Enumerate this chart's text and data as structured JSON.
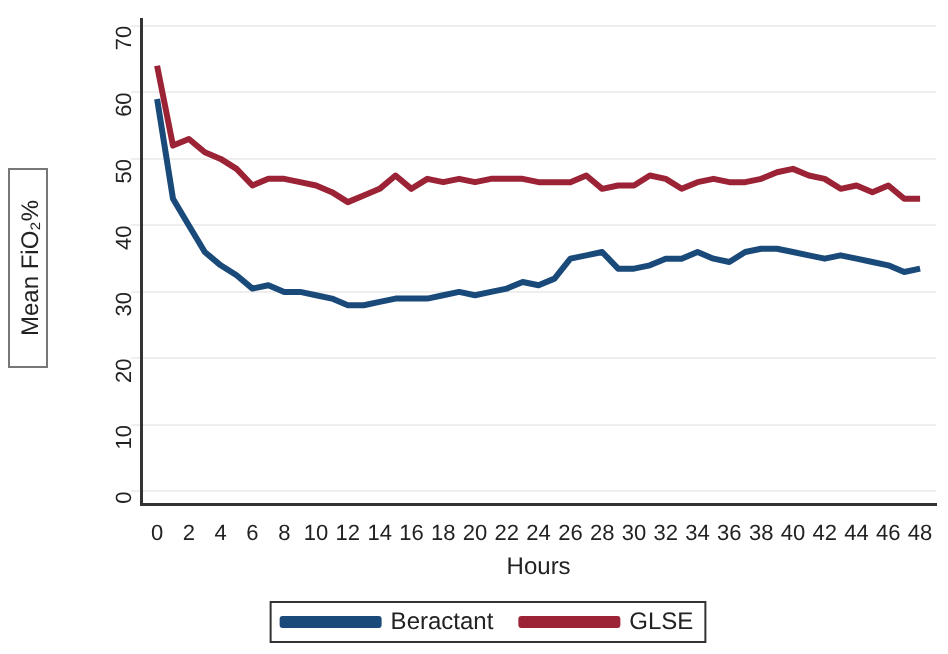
{
  "chart_data": {
    "type": "line",
    "xlabel": "Hours",
    "ylabel": "Mean FiO₂%",
    "x": [
      0,
      1,
      2,
      3,
      4,
      5,
      6,
      7,
      8,
      9,
      10,
      11,
      12,
      13,
      14,
      15,
      16,
      17,
      18,
      19,
      20,
      21,
      22,
      23,
      24,
      25,
      26,
      27,
      28,
      29,
      30,
      31,
      32,
      33,
      34,
      35,
      36,
      37,
      38,
      39,
      40,
      41,
      42,
      43,
      44,
      45,
      46,
      47,
      48
    ],
    "series": [
      {
        "name": "Beractant",
        "color": "#1a4a7a",
        "values": [
          59,
          44,
          40,
          36,
          34,
          32.5,
          30.5,
          31,
          30,
          30,
          29.5,
          29,
          28,
          28,
          28.5,
          29,
          29,
          29,
          29.5,
          30,
          29.5,
          30,
          30.5,
          31.5,
          31,
          32,
          35,
          35.5,
          36,
          33.5,
          33.5,
          34,
          35,
          35,
          36,
          35,
          34.5,
          36,
          36.5,
          36.5,
          36,
          35.5,
          35,
          35.5,
          35,
          34.5,
          34,
          33,
          33.5
        ]
      },
      {
        "name": "GLSE",
        "color": "#9b2335",
        "values": [
          64,
          52,
          53,
          51,
          50,
          48.5,
          46,
          47,
          47,
          46.5,
          46,
          45,
          43.5,
          44.5,
          45.5,
          47.5,
          45.5,
          47,
          46.5,
          47,
          46.5,
          47,
          47,
          47,
          46.5,
          46.5,
          46.5,
          47.5,
          45.5,
          46,
          46,
          47.5,
          47,
          45.5,
          46.5,
          47,
          46.5,
          46.5,
          47,
          48,
          48.5,
          47.5,
          47,
          45.5,
          46,
          45,
          46,
          44,
          44
        ]
      }
    ],
    "xlim": [
      -1,
      49
    ],
    "xticks": [
      0,
      2,
      4,
      6,
      8,
      10,
      12,
      14,
      16,
      18,
      20,
      22,
      24,
      26,
      28,
      30,
      32,
      34,
      36,
      38,
      40,
      42,
      44,
      46,
      48
    ],
    "ylim": [
      -2,
      71
    ],
    "yticks": [
      0,
      10,
      20,
      30,
      40,
      50,
      60,
      70
    ],
    "grid": "y",
    "legend": "bottom",
    "line_style": "solid",
    "marker": "none"
  }
}
